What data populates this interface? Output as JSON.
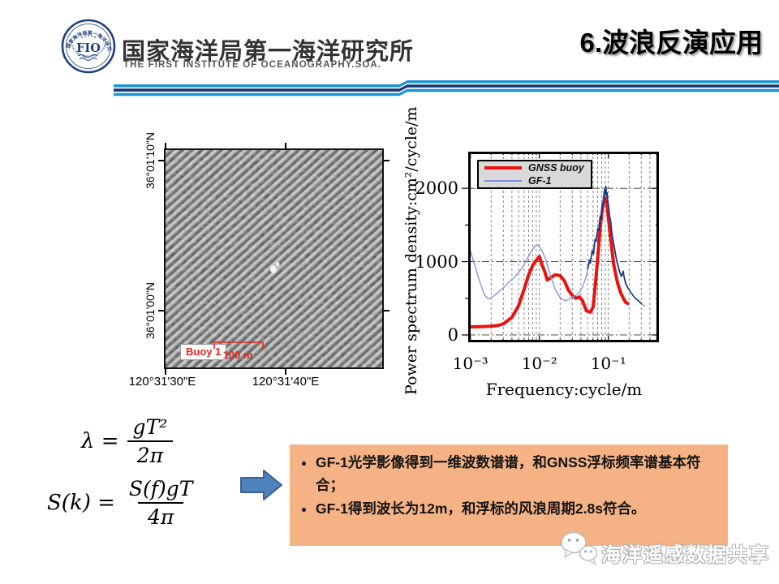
{
  "header": {
    "logo": {
      "center_text": "FIO",
      "seal_top": "国家海洋局第一海洋研究所",
      "seal_bottom": "THE FIRST INSTITUTE OF OCEANOGRAPHY SOA"
    },
    "org_cn": "国家海洋局第一海洋研究所",
    "org_en": "THE FIRST INSTITUTE OF OCEANOGRAPHY.SOA.",
    "title": "6.波浪反演应用",
    "accent_light": "#1c96d4",
    "accent_dark": "#17386e"
  },
  "map_figure": {
    "lat_top": "36°01'10\"N",
    "lat_bottom": "36°01'00\"N",
    "lon_left": "120°31'30\"E",
    "lon_right": "120°31'40\"E",
    "buoy_label": "Buoy 1",
    "scale_label": "100 m"
  },
  "chart_data": {
    "type": "line",
    "xlabel": "Frequency:cycle/m",
    "ylabel": "Power spectrum density:cm²/cycle/m",
    "x_scale": "log",
    "xlim": [
      0.00093,
      0.54
    ],
    "ylim": [
      -100,
      2500
    ],
    "xtick_values": [
      0.001,
      0.01,
      0.1
    ],
    "xtick_labels": [
      "10⁻³",
      "10⁻²",
      "10⁻¹"
    ],
    "ytick_values": [
      0,
      1000,
      2000
    ],
    "ytick_labels": [
      "0",
      "1000",
      "2000"
    ],
    "grid": {
      "vertical": "log-minor dashed",
      "horizontal": "dash-dot at yticks"
    },
    "legend": [
      "GNSS buoy",
      "GF-1"
    ],
    "legend_position": "top-left",
    "series": [
      {
        "name": "GNSS buoy",
        "color": "#ea1210",
        "width": 4,
        "in_legend": true,
        "points": [
          [
            0.001,
            110
          ],
          [
            0.0015,
            115
          ],
          [
            0.002,
            120
          ],
          [
            0.0025,
            130
          ],
          [
            0.003,
            150
          ],
          [
            0.004,
            240
          ],
          [
            0.005,
            400
          ],
          [
            0.006,
            620
          ],
          [
            0.007,
            820
          ],
          [
            0.008,
            950
          ],
          [
            0.009,
            1020
          ],
          [
            0.01,
            1070
          ],
          [
            0.011,
            950
          ],
          [
            0.012,
            860
          ],
          [
            0.013,
            750
          ],
          [
            0.015,
            790
          ],
          [
            0.017,
            820
          ],
          [
            0.02,
            810
          ],
          [
            0.023,
            740
          ],
          [
            0.026,
            620
          ],
          [
            0.03,
            540
          ],
          [
            0.034,
            500
          ],
          [
            0.038,
            520
          ],
          [
            0.042,
            470
          ],
          [
            0.048,
            330
          ],
          [
            0.055,
            310
          ],
          [
            0.06,
            380
          ],
          [
            0.065,
            700
          ],
          [
            0.07,
            1050
          ],
          [
            0.075,
            1400
          ],
          [
            0.08,
            1650
          ],
          [
            0.085,
            1820
          ],
          [
            0.09,
            1870
          ],
          [
            0.095,
            1800
          ],
          [
            0.1,
            1600
          ],
          [
            0.11,
            1250
          ],
          [
            0.12,
            950
          ],
          [
            0.135,
            720
          ],
          [
            0.15,
            580
          ],
          [
            0.165,
            500
          ],
          [
            0.18,
            440
          ],
          [
            0.19,
            430
          ]
        ]
      },
      {
        "name": "GF-1",
        "color": "#7b90dd",
        "width": 1.3,
        "in_legend": true,
        "points": [
          [
            0.001,
            1150
          ],
          [
            0.0012,
            900
          ],
          [
            0.0014,
            700
          ],
          [
            0.0016,
            550
          ],
          [
            0.0018,
            490
          ],
          [
            0.002,
            510
          ],
          [
            0.0024,
            560
          ],
          [
            0.003,
            640
          ],
          [
            0.0036,
            720
          ],
          [
            0.0045,
            800
          ],
          [
            0.0055,
            900
          ],
          [
            0.0065,
            1020
          ],
          [
            0.0075,
            1130
          ],
          [
            0.0085,
            1210
          ],
          [
            0.0095,
            1230
          ],
          [
            0.0105,
            1180
          ],
          [
            0.0115,
            1100
          ],
          [
            0.0125,
            1020
          ],
          [
            0.0135,
            900
          ],
          [
            0.015,
            760
          ],
          [
            0.017,
            620
          ],
          [
            0.019,
            540
          ],
          [
            0.021,
            490
          ],
          [
            0.024,
            470
          ],
          [
            0.027,
            490
          ],
          [
            0.03,
            520
          ],
          [
            0.034,
            540
          ],
          [
            0.038,
            580
          ],
          [
            0.042,
            650
          ],
          [
            0.047,
            780
          ],
          [
            0.052,
            950
          ],
          [
            0.057,
            1100
          ],
          [
            0.062,
            1220
          ],
          [
            0.067,
            1350
          ],
          [
            0.072,
            1500
          ],
          [
            0.078,
            1680
          ],
          [
            0.083,
            1850
          ],
          [
            0.087,
            1980
          ],
          [
            0.09,
            2020
          ],
          [
            0.093,
            1960
          ],
          [
            0.097,
            1850
          ],
          [
            0.102,
            1700
          ],
          [
            0.108,
            1520
          ],
          [
            0.115,
            1320
          ],
          [
            0.123,
            1150
          ],
          [
            0.132,
            1000
          ],
          [
            0.142,
            880
          ],
          [
            0.152,
            800
          ],
          [
            0.163,
            850
          ],
          [
            0.172,
            760
          ],
          [
            0.185,
            680
          ],
          [
            0.2,
            620
          ],
          [
            0.215,
            570
          ],
          [
            0.235,
            520
          ],
          [
            0.26,
            480
          ],
          [
            0.29,
            440
          ],
          [
            0.32,
            410
          ],
          [
            0.34,
            395
          ]
        ]
      },
      {
        "name": "GF-1 raw trace",
        "color": "#16367f",
        "width": 1.6,
        "in_legend": false,
        "points": [
          [
            0.05,
            900
          ],
          [
            0.053,
            1020
          ],
          [
            0.055,
            980
          ],
          [
            0.058,
            1150
          ],
          [
            0.061,
            1100
          ],
          [
            0.064,
            1300
          ],
          [
            0.067,
            1280
          ],
          [
            0.07,
            1450
          ],
          [
            0.073,
            1420
          ],
          [
            0.076,
            1620
          ],
          [
            0.079,
            1580
          ],
          [
            0.082,
            1800
          ],
          [
            0.085,
            1760
          ],
          [
            0.088,
            1980
          ],
          [
            0.09,
            1920
          ],
          [
            0.092,
            2030
          ],
          [
            0.094,
            1900
          ],
          [
            0.096,
            1940
          ],
          [
            0.098,
            1820
          ],
          [
            0.101,
            1760
          ],
          [
            0.104,
            1620
          ],
          [
            0.108,
            1560
          ],
          [
            0.112,
            1400
          ],
          [
            0.117,
            1300
          ],
          [
            0.123,
            1180
          ],
          [
            0.13,
            1050
          ],
          [
            0.138,
            950
          ],
          [
            0.146,
            860
          ],
          [
            0.155,
            800
          ],
          [
            0.164,
            870
          ],
          [
            0.17,
            780
          ],
          [
            0.178,
            700
          ],
          [
            0.19,
            650
          ],
          [
            0.205,
            600
          ],
          [
            0.22,
            560
          ],
          [
            0.24,
            510
          ],
          [
            0.27,
            470
          ],
          [
            0.3,
            430
          ]
        ]
      }
    ]
  },
  "formulas": {
    "f1_lhs": "λ =",
    "f1_num": "gT²",
    "f1_den": "2π",
    "f2_lhs": "S(k) =",
    "f2_num": "S(f)gT",
    "f2_den": "4π"
  },
  "callout": {
    "bg": "#f5b285",
    "bullet1": "GF-1光学影像得到一维波数谱谱，和GNSS浮标频率谱基本符合；",
    "bullet2": "GF-1得到波长为12m，和浮标的风浪周期2.8s符合。"
  },
  "watermark": {
    "text": "海洋遥感数据共享"
  }
}
